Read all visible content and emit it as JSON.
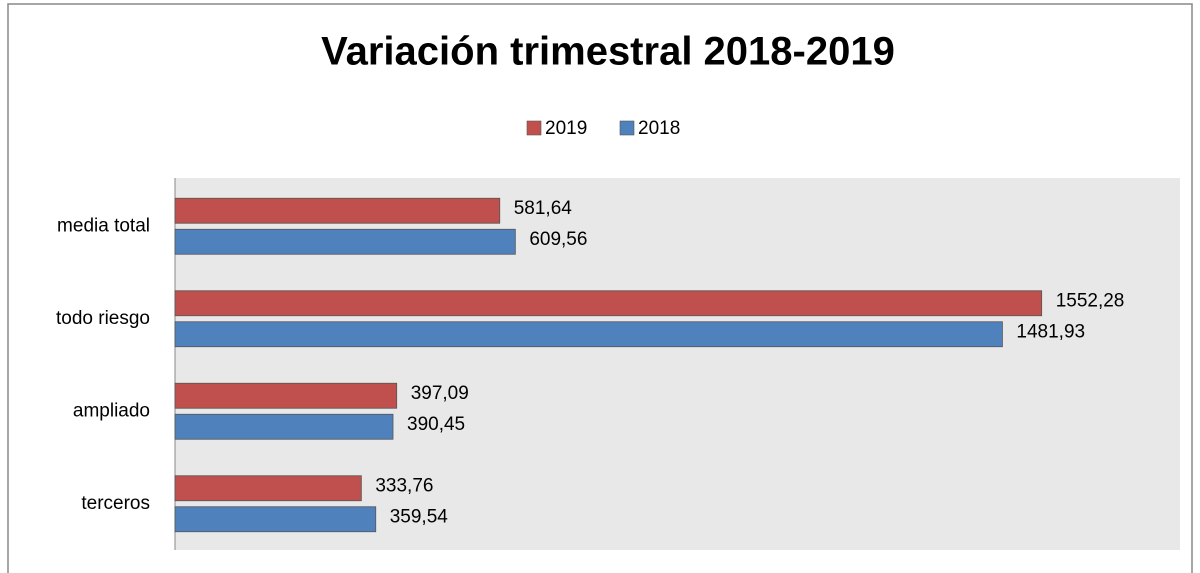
{
  "chart_data": {
    "type": "bar",
    "orientation": "horizontal",
    "title": "Variación trimestral 2018-2019",
    "categories": [
      "media total",
      "todo riesgo",
      "ampliado",
      "terceros"
    ],
    "series": [
      {
        "name": "2019",
        "color": "#c0504d",
        "values": [
          581.64,
          1552.28,
          397.09,
          333.76
        ],
        "value_labels": [
          "581,64",
          "1552,28",
          "397,09",
          "333,76"
        ]
      },
      {
        "name": "2018",
        "color": "#4f81bd",
        "values": [
          609.56,
          1481.93,
          390.45,
          359.54
        ],
        "value_labels": [
          "609,56",
          "1481,93",
          "390,45",
          "359,54"
        ]
      }
    ],
    "xlim": [
      0,
      1800
    ],
    "legend": "top"
  }
}
